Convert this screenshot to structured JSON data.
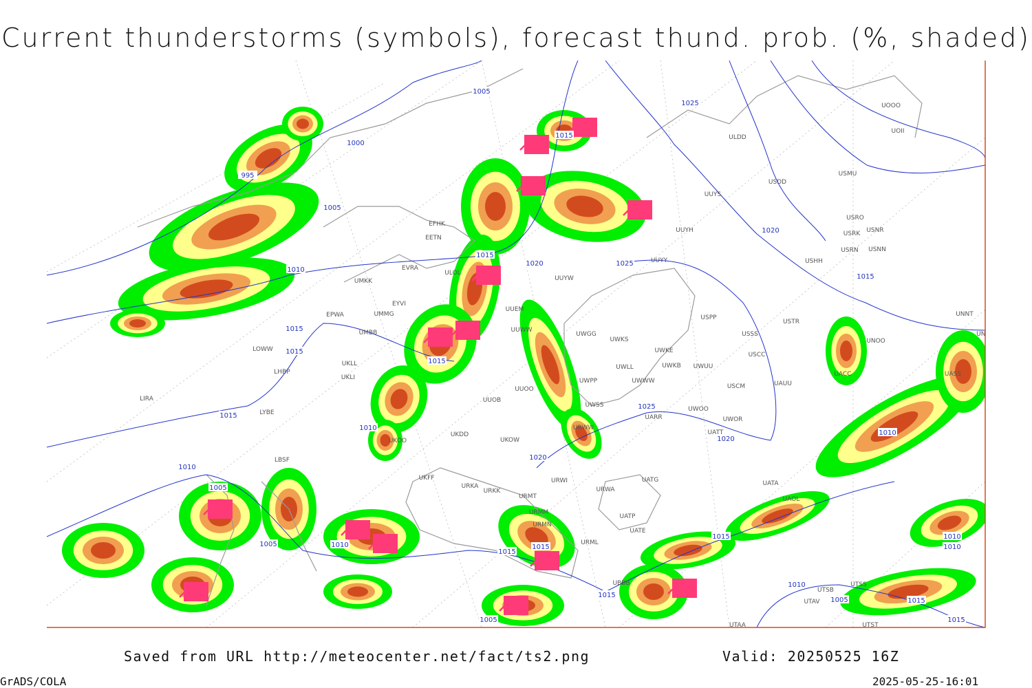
{
  "title": "Current thunderstorms (symbols), forecast thund. prob. (%, shaded)",
  "footer": {
    "source": "Saved from URL http://meteocenter.net/fact/ts2.png",
    "valid": "Valid: 20250525 16Z",
    "software": "GrADS/COLA",
    "timestamp": "2025-05-25-16:01"
  },
  "isobar_labels": [
    1005,
    1025,
    1015,
    1000,
    995,
    1005,
    1015,
    1020,
    1025,
    1020,
    1010,
    1015,
    1015,
    1015,
    1015,
    1025,
    1015,
    1010,
    1020,
    1010,
    1020,
    1010,
    1005,
    1005,
    1010,
    1015,
    1015,
    1015,
    1010,
    1010,
    1010,
    1015,
    1005,
    1015,
    1005,
    1015
  ],
  "station_labels": [
    "ULDD",
    "UUYS",
    "USDD",
    "USMU",
    "UOOO",
    "UOII",
    "USRO",
    "USNR",
    "USRK",
    "USRN",
    "USNN",
    "USHH",
    "UUYH",
    "UUYY",
    "UUYW",
    "USPP",
    "USTR",
    "USSS",
    "UNOO",
    "UNNT",
    "UNBB",
    "UWKE",
    "UWKB",
    "UWUU",
    "USCC",
    "UWGG",
    "UWKS",
    "UWLL",
    "UWWW",
    "UWPP",
    "USCM",
    "UAUU",
    "UACC",
    "UASS",
    "UWSS",
    "UARR",
    "UWOO",
    "UWOR",
    "UATT",
    "UATG",
    "UATA",
    "UAOL",
    "UATP",
    "UATE",
    "UTAA",
    "UTSS",
    "UTSB",
    "UTAV",
    "UTST",
    "EFHK",
    "EETN",
    "EVRA",
    "ULOL",
    "UMKK",
    "EYVI",
    "EPWA",
    "UMMG",
    "UMBB",
    "LOWW",
    "LHBP",
    "UKLL",
    "UKLI",
    "LIRA",
    "LYBE",
    "LBSF",
    "UKOO",
    "UKDD",
    "UKOW",
    "UKFF",
    "URKA",
    "URKK",
    "URMT",
    "URMM",
    "URMN",
    "URML",
    "UBBB",
    "URWI",
    "URWW",
    "URWA",
    "UUEM",
    "UUWW",
    "UUOO",
    "UUOB"
  ]
}
